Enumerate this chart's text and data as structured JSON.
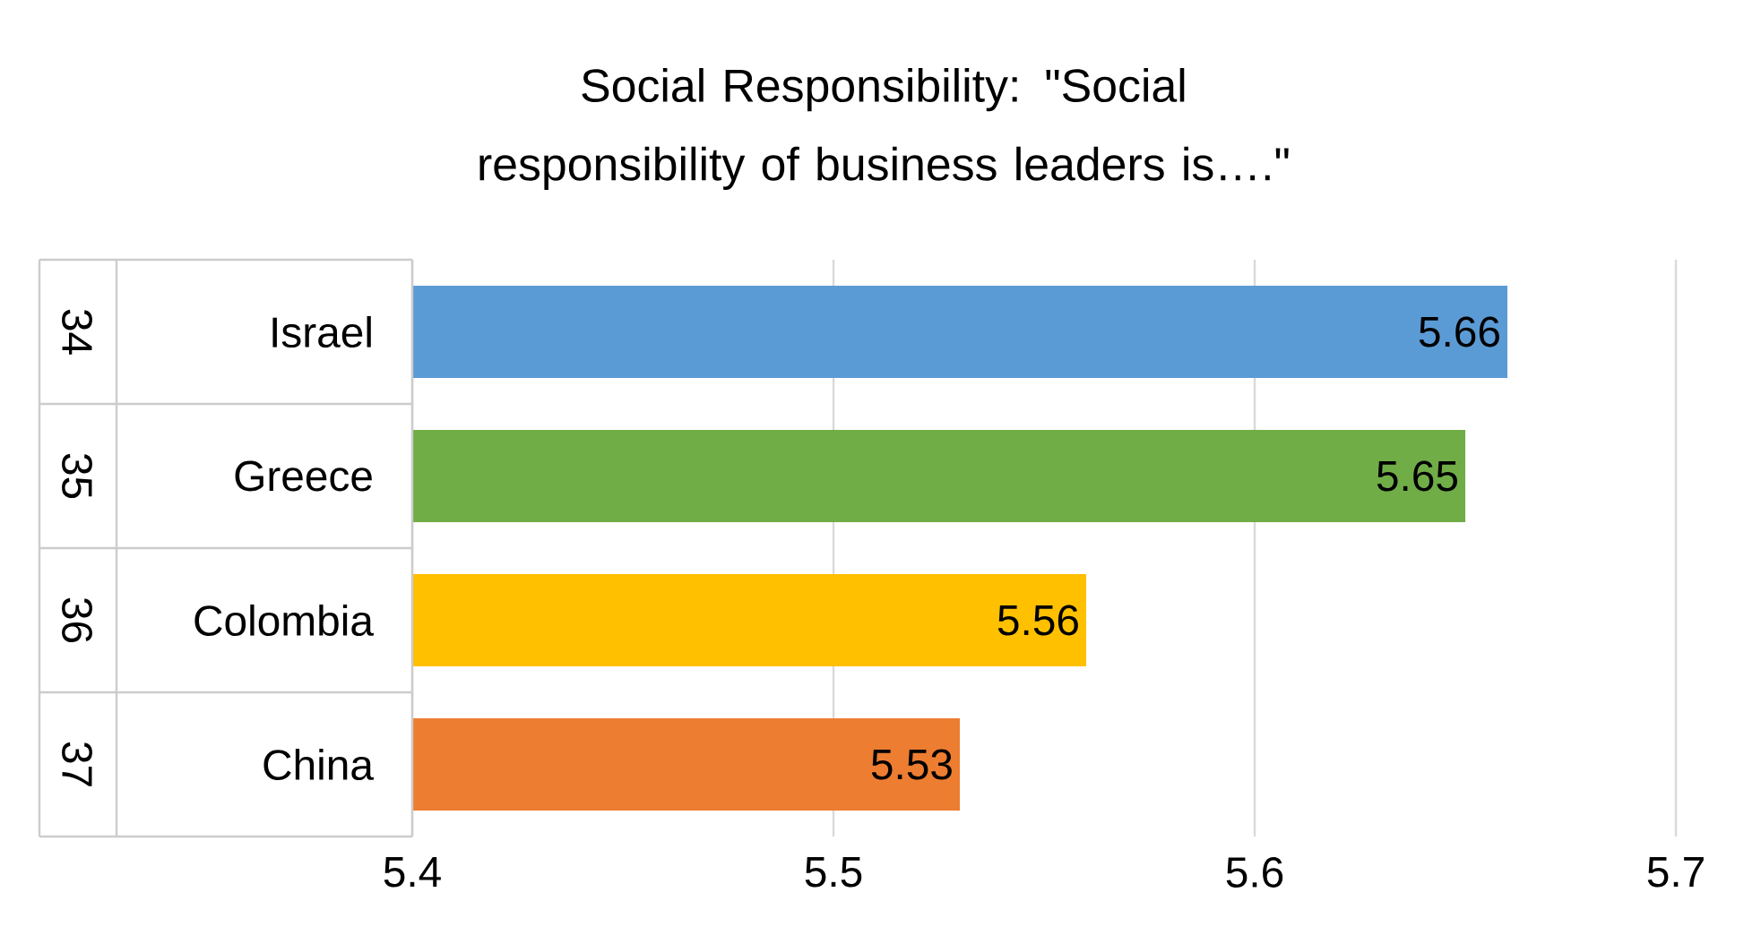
{
  "chart_data": {
    "type": "bar",
    "orientation": "horizontal",
    "title": "Social Responsibility:  \"Social responsibility of business leaders is….\"",
    "categories": [
      "Israel",
      "Greece",
      "Colombia",
      "China"
    ],
    "values": [
      5.66,
      5.65,
      5.56,
      5.53
    ],
    "colors": [
      "#5b9bd5",
      "#70ad47",
      "#ffc000",
      "#ed7d31"
    ],
    "annotations": [
      "34",
      "35",
      "36",
      "37"
    ],
    "xlim": [
      5.4,
      5.7
    ],
    "xticks": [
      5.4,
      5.5,
      5.6,
      5.7
    ],
    "grid": "x",
    "data_labels": true
  }
}
